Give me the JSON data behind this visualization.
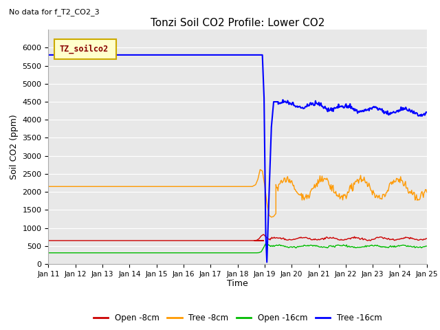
{
  "title": "Tonzi Soil CO2 Profile: Lower CO2",
  "no_data_text": "No data for f_T2_CO2_3",
  "xlabel": "Time",
  "ylabel": "Soil CO2 (ppm)",
  "ylim": [
    0,
    6500
  ],
  "yticks": [
    0,
    500,
    1000,
    1500,
    2000,
    2500,
    3000,
    3500,
    4000,
    4500,
    5000,
    5500,
    6000
  ],
  "bg_color": "#e8e8e8",
  "grid_color": "#ffffff",
  "legend_label": "TZ_soilco2",
  "x_tick_labels": [
    "Jan 11",
    "Jan 12",
    "Jan 13",
    "Jan 14",
    "Jan 15",
    "Jan 16",
    "Jan 17",
    "Jan 18",
    "Jan 19",
    "Jan 20",
    "Jan 21",
    "Jan 22",
    "Jan 23",
    "Jan 24",
    "Jan 25"
  ],
  "figsize": [
    6.4,
    4.8
  ],
  "dpi": 100,
  "open_8cm_color": "#cc0000",
  "tree_8cm_color": "#ff9900",
  "open_16cm_color": "#00bb00",
  "tree_16cm_color": "#0000ff"
}
